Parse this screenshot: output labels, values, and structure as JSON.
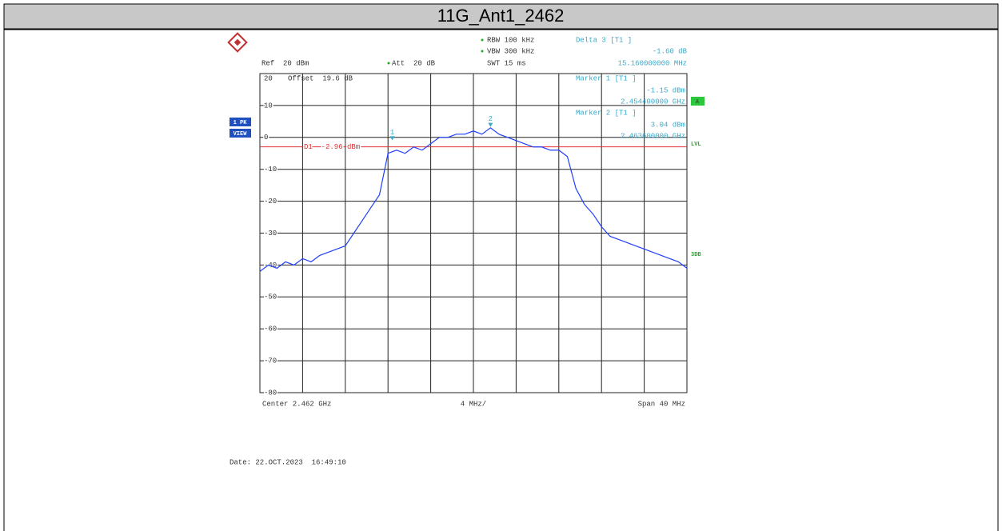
{
  "chart_data": {
    "type": "line",
    "title": "11G_Ant1_2462",
    "x": [
      2442,
      2442.8,
      2443.6,
      2444.4,
      2445.2,
      2446,
      2446.8,
      2447.6,
      2448.4,
      2449.2,
      2450,
      2450.8,
      2451.6,
      2452.4,
      2453.2,
      2454,
      2454.8,
      2455.6,
      2456.4,
      2457.2,
      2458,
      2458.8,
      2459.6,
      2460.4,
      2461.2,
      2462,
      2462.8,
      2463.6,
      2464.4,
      2465.2,
      2466,
      2466.8,
      2467.6,
      2468.4,
      2469.2,
      2470,
      2470.8,
      2471.6,
      2472.4,
      2473.2,
      2474,
      2474.8,
      2475.6,
      2476.4,
      2477.2,
      2478,
      2478.8,
      2479.6,
      2480.4,
      2481.2,
      2482
    ],
    "values": [
      -42,
      -40,
      -41,
      -39,
      -40,
      -38,
      -39,
      -37,
      -36,
      -35,
      -34,
      -30,
      -26,
      -22,
      -18,
      -5,
      -4,
      -5,
      -3,
      -4,
      -2,
      0,
      0,
      1,
      1,
      2,
      1,
      3,
      1,
      0,
      -1,
      -2,
      -3,
      -3,
      -4,
      -4,
      -6,
      -16,
      -21,
      -24,
      -28,
      -31,
      -32,
      -33,
      -34,
      -35,
      -36,
      -37,
      -38,
      -39,
      -41
    ],
    "color": "#1f3fff",
    "xlim": [
      2442,
      2482
    ],
    "xticks": [
      2442,
      2446,
      2450,
      2454,
      2458,
      2462,
      2466,
      2470,
      2474,
      2478,
      2482
    ],
    "ylim": [
      -80,
      20
    ],
    "yticks": [
      20,
      10,
      0,
      -10,
      -20,
      -30,
      -40,
      -50,
      -60,
      -70,
      -80
    ],
    "grid": true,
    "settings": {
      "ref": "Ref  20 dBm",
      "att": "Att  20 dB",
      "rbw": "RBW 100 kHz",
      "vbw": "VBW 300 kHz",
      "swt": "SWT 15 ms",
      "offset": "Offset  19.6 dB"
    },
    "delta": {
      "title": "Delta 3 [T1 ]",
      "level": "-1.60 dB",
      "freq": "15.160000000 MHz"
    },
    "markers": [
      {
        "name": "1",
        "title": "Marker 1 [T1 ]",
        "level_label": "-1.15 dBm",
        "freq_label": "2.454400000 GHz",
        "x": 2454.4,
        "y": -1.15
      },
      {
        "name": "2",
        "title": "Marker 2 [T1 ]",
        "level_label": "3.04 dBm",
        "freq_label": "2.463600000 GHz",
        "x": 2463.6,
        "y": 3.04
      }
    ],
    "display_line": {
      "label": "D1  -2.96 dBm",
      "value": -2.96,
      "color": "#e03030"
    },
    "side_labels": {
      "trace": "1 PK",
      "view": "VIEW",
      "a": "A",
      "lvl": "LVL",
      "db": "3DB"
    },
    "footer": {
      "center": "Center 2.462 GHz",
      "div": "4 MHz/",
      "span": "Span 40 MHz"
    },
    "date": "Date: 22.OCT.2023  16:49:10"
  }
}
